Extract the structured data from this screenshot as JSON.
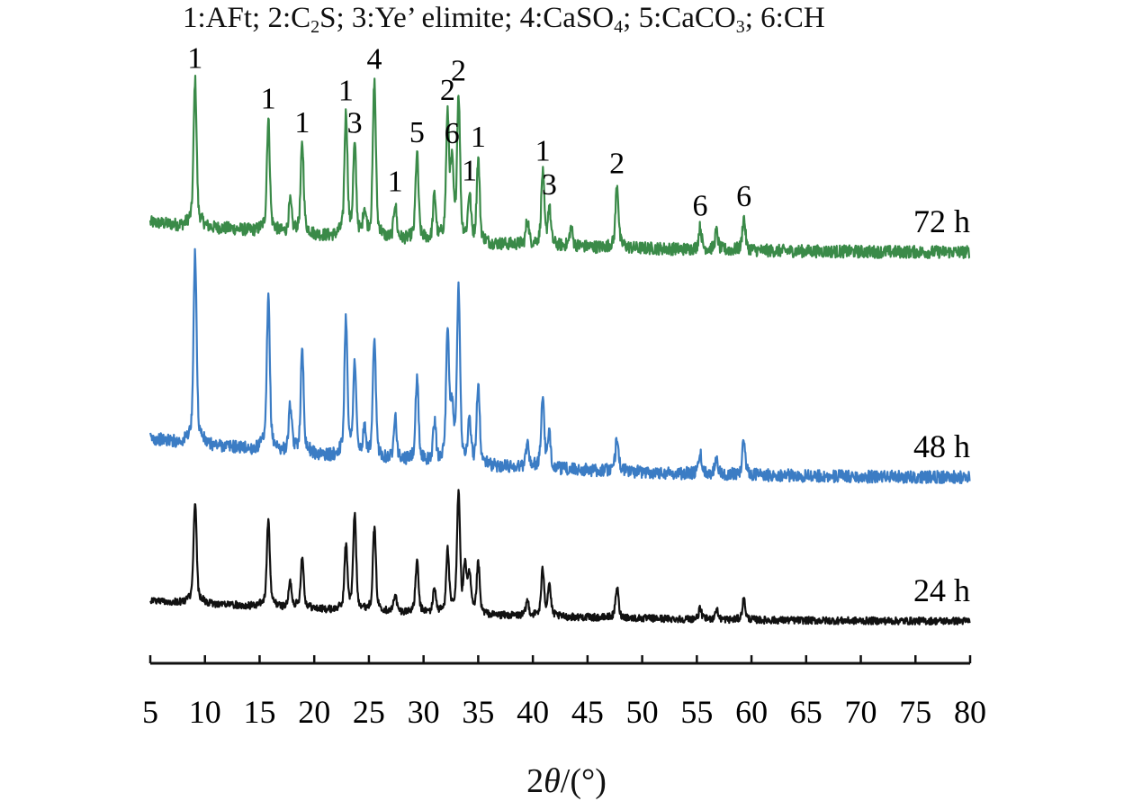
{
  "chart_data": {
    "type": "line",
    "title_entries": [
      {
        "num": "1",
        "parts": [
          {
            "t": "AFt"
          }
        ]
      },
      {
        "num": "2",
        "parts": [
          {
            "t": "C"
          },
          {
            "sub": "2"
          },
          {
            "t": "S"
          }
        ]
      },
      {
        "num": "3",
        "parts": [
          {
            "t": "Ye’ elimite"
          }
        ]
      },
      {
        "num": "4",
        "parts": [
          {
            "t": "CaSO"
          },
          {
            "sub": "4"
          }
        ]
      },
      {
        "num": "5",
        "parts": [
          {
            "t": "CaCO"
          },
          {
            "sub": "3"
          }
        ]
      },
      {
        "num": "6",
        "parts": [
          {
            "t": "CH"
          }
        ]
      }
    ],
    "xlabel": {
      "prefix": "2",
      "symbol": "θ",
      "suffix": "/(°)"
    },
    "ylabel": "",
    "xlim": [
      5,
      80
    ],
    "xticks": [
      5,
      10,
      15,
      20,
      25,
      30,
      35,
      40,
      45,
      50,
      55,
      60,
      65,
      70,
      75,
      80
    ],
    "ylim_au": [
      0,
      700
    ],
    "grid": false,
    "series": [
      {
        "name": "72 h",
        "color": "#3a8a48",
        "baseline_start": 490,
        "baseline_end": 457,
        "noise": 7,
        "peaks": [
          [
            9.1,
            145
          ],
          [
            15.8,
            110
          ],
          [
            17.8,
            30
          ],
          [
            18.9,
            88
          ],
          [
            22.9,
            120
          ],
          [
            23.7,
            87
          ],
          [
            24.6,
            25
          ],
          [
            25.5,
            155
          ],
          [
            27.4,
            35
          ],
          [
            29.4,
            85
          ],
          [
            31.0,
            45
          ],
          [
            32.2,
            120
          ],
          [
            32.6,
            68
          ],
          [
            33.2,
            142
          ],
          [
            34.2,
            45
          ],
          [
            35.0,
            82
          ],
          [
            39.5,
            25
          ],
          [
            40.9,
            70
          ],
          [
            41.5,
            35
          ],
          [
            43.5,
            18
          ],
          [
            47.7,
            62
          ],
          [
            55.3,
            22
          ],
          [
            56.8,
            18
          ],
          [
            59.3,
            32
          ]
        ],
        "annotations": [
          [
            9.1,
            "1"
          ],
          [
            15.8,
            "1"
          ],
          [
            18.9,
            "1"
          ],
          [
            22.9,
            "1"
          ],
          [
            23.7,
            "3"
          ],
          [
            25.5,
            "4"
          ],
          [
            27.4,
            "1"
          ],
          [
            29.4,
            "5"
          ],
          [
            32.2,
            "2"
          ],
          [
            32.6,
            "6"
          ],
          [
            33.2,
            "2"
          ],
          [
            34.2,
            "1"
          ],
          [
            35.0,
            "1"
          ],
          [
            40.9,
            "1"
          ],
          [
            41.5,
            "3"
          ],
          [
            47.7,
            "2"
          ],
          [
            55.3,
            "6"
          ],
          [
            59.3,
            "6"
          ]
        ]
      },
      {
        "name": "48 h",
        "color": "#3b7cc4",
        "baseline_start": 250,
        "baseline_end": 207,
        "noise": 7,
        "peaks": [
          [
            9.1,
            190
          ],
          [
            15.8,
            150
          ],
          [
            17.8,
            45
          ],
          [
            18.9,
            100
          ],
          [
            22.9,
            135
          ],
          [
            23.7,
            90
          ],
          [
            24.6,
            25
          ],
          [
            25.5,
            115
          ],
          [
            27.4,
            45
          ],
          [
            29.4,
            80
          ],
          [
            31.0,
            40
          ],
          [
            32.2,
            125
          ],
          [
            32.6,
            50
          ],
          [
            33.2,
            175
          ],
          [
            34.2,
            40
          ],
          [
            35.0,
            80
          ],
          [
            39.5,
            25
          ],
          [
            40.9,
            70
          ],
          [
            41.5,
            30
          ],
          [
            47.7,
            35
          ],
          [
            55.3,
            20
          ],
          [
            56.8,
            18
          ],
          [
            59.3,
            35
          ]
        ],
        "annotations": []
      },
      {
        "name": "24 h",
        "color": "#111111",
        "baseline_start": 70,
        "baseline_end": 47,
        "noise": 4,
        "peaks": [
          [
            9.1,
            100
          ],
          [
            15.8,
            85
          ],
          [
            17.8,
            25
          ],
          [
            18.9,
            50
          ],
          [
            22.9,
            62
          ],
          [
            23.7,
            93
          ],
          [
            25.5,
            83
          ],
          [
            27.4,
            17
          ],
          [
            29.4,
            50
          ],
          [
            31.0,
            25
          ],
          [
            32.2,
            62
          ],
          [
            33.2,
            120
          ],
          [
            33.8,
            45
          ],
          [
            34.2,
            35
          ],
          [
            35.0,
            50
          ],
          [
            39.5,
            15
          ],
          [
            40.9,
            45
          ],
          [
            41.5,
            30
          ],
          [
            47.7,
            30
          ],
          [
            55.3,
            10
          ],
          [
            56.8,
            10
          ],
          [
            59.3,
            20
          ]
        ],
        "annotations": []
      }
    ]
  }
}
